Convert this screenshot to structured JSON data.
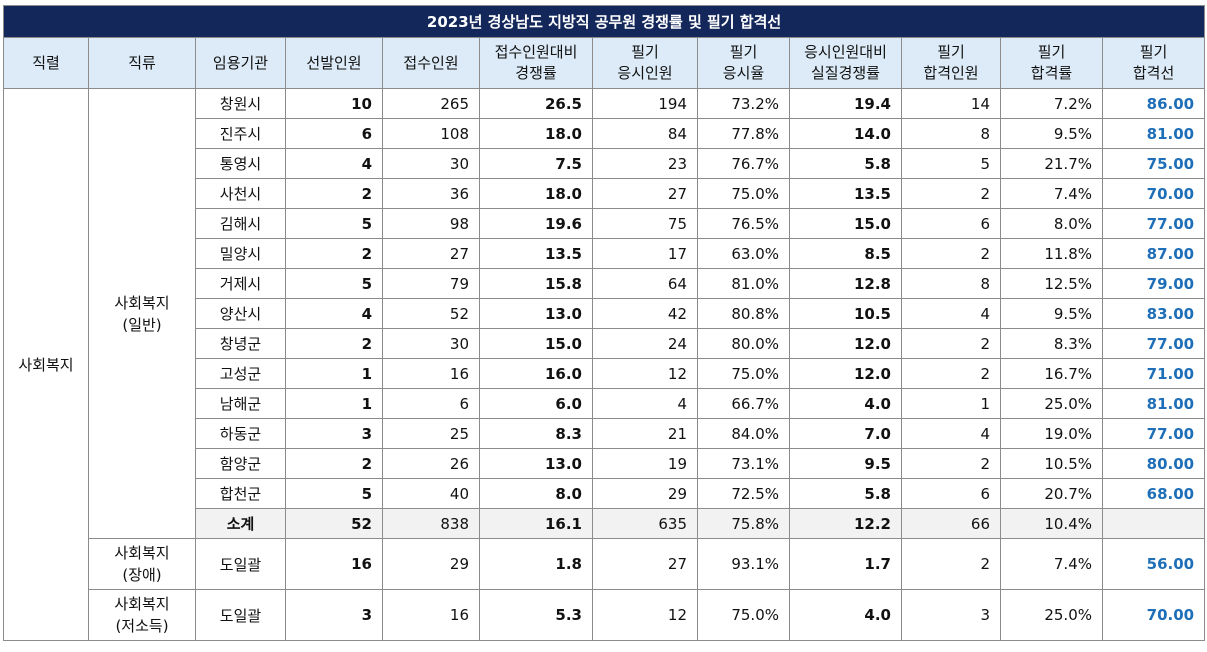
{
  "title": "2023년 경상남도 지방직 공무원 경쟁률 및 필기 합격선",
  "headers": [
    [
      "직렬"
    ],
    [
      "직류"
    ],
    [
      "임용기관"
    ],
    [
      "선발인원"
    ],
    [
      "접수인원"
    ],
    [
      "접수인원대비",
      "경쟁률"
    ],
    [
      "필기",
      "응시인원"
    ],
    [
      "필기",
      "응시율"
    ],
    [
      "응시인원대비",
      "실질경쟁률"
    ],
    [
      "필기",
      "합격인원"
    ],
    [
      "필기",
      "합격률"
    ],
    [
      "필기",
      "합격선"
    ]
  ],
  "series": "사회복지",
  "groups": {
    "general": [
      "사회복지",
      "(일반)"
    ],
    "disabled": [
      "사회복지",
      "(장애)"
    ],
    "lowincome": [
      "사회복지",
      "(저소득)"
    ]
  },
  "rows": [
    [
      "창원시",
      "10",
      "265",
      "26.5",
      "194",
      "73.2%",
      "19.4",
      "14",
      "7.2%",
      "86.00"
    ],
    [
      "진주시",
      "6",
      "108",
      "18.0",
      "84",
      "77.8%",
      "14.0",
      "8",
      "9.5%",
      "81.00"
    ],
    [
      "통영시",
      "4",
      "30",
      "7.5",
      "23",
      "76.7%",
      "5.8",
      "5",
      "21.7%",
      "75.00"
    ],
    [
      "사천시",
      "2",
      "36",
      "18.0",
      "27",
      "75.0%",
      "13.5",
      "2",
      "7.4%",
      "70.00"
    ],
    [
      "김해시",
      "5",
      "98",
      "19.6",
      "75",
      "76.5%",
      "15.0",
      "6",
      "8.0%",
      "77.00"
    ],
    [
      "밀양시",
      "2",
      "27",
      "13.5",
      "17",
      "63.0%",
      "8.5",
      "2",
      "11.8%",
      "87.00"
    ],
    [
      "거제시",
      "5",
      "79",
      "15.8",
      "64",
      "81.0%",
      "12.8",
      "8",
      "12.5%",
      "79.00"
    ],
    [
      "양산시",
      "4",
      "52",
      "13.0",
      "42",
      "80.8%",
      "10.5",
      "4",
      "9.5%",
      "83.00"
    ],
    [
      "창녕군",
      "2",
      "30",
      "15.0",
      "24",
      "80.0%",
      "12.0",
      "2",
      "8.3%",
      "77.00"
    ],
    [
      "고성군",
      "1",
      "16",
      "16.0",
      "12",
      "75.0%",
      "12.0",
      "2",
      "16.7%",
      "71.00"
    ],
    [
      "남해군",
      "1",
      "6",
      "6.0",
      "4",
      "66.7%",
      "4.0",
      "1",
      "25.0%",
      "81.00"
    ],
    [
      "하동군",
      "3",
      "25",
      "8.3",
      "21",
      "84.0%",
      "7.0",
      "4",
      "19.0%",
      "77.00"
    ],
    [
      "함양군",
      "2",
      "26",
      "13.0",
      "19",
      "73.1%",
      "9.5",
      "2",
      "10.5%",
      "80.00"
    ],
    [
      "합천군",
      "5",
      "40",
      "8.0",
      "29",
      "72.5%",
      "5.8",
      "6",
      "20.7%",
      "68.00"
    ]
  ],
  "subtotal": [
    "소계",
    "52",
    "838",
    "16.1",
    "635",
    "75.8%",
    "12.2",
    "66",
    "10.4%",
    ""
  ],
  "disabled_row": [
    "도일괄",
    "16",
    "29",
    "1.8",
    "27",
    "93.1%",
    "1.7",
    "2",
    "7.4%",
    "56.00"
  ],
  "lowincome_row": [
    "도일괄",
    "3",
    "16",
    "5.3",
    "12",
    "75.0%",
    "4.0",
    "3",
    "25.0%",
    "70.00"
  ]
}
